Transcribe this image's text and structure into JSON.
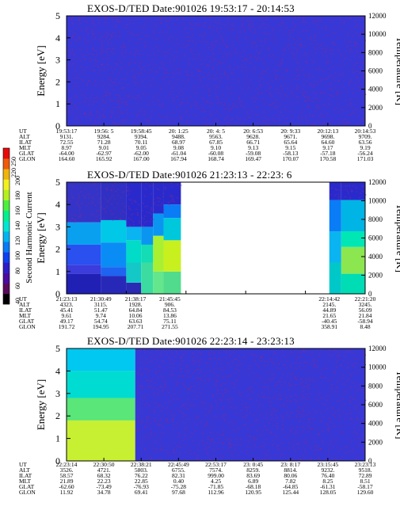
{
  "chart_data": [
    {
      "type": "heatmap",
      "title": "EXOS-D/TED Date:901026 19:53:17 - 20:14:53",
      "ylabel": "Energy [eV]",
      "ylabel_right": "Temperature [K]",
      "ylim": [
        0,
        5
      ],
      "yticks": [
        "0",
        "1",
        "2",
        "3",
        "4",
        "5"
      ],
      "y2lim": [
        0,
        12000
      ],
      "y2ticks": [
        "0",
        "2000",
        "4000",
        "6000",
        "8000",
        "10000",
        "12000"
      ],
      "orbit_rows": [
        "UT",
        "ALT",
        "ILAT",
        "MLT",
        "GLAT",
        "GLON"
      ],
      "orbit_columns": [
        [
          "19:53:17",
          "9131.",
          "72.55",
          "8.97",
          "-64.00",
          "164.60"
        ],
        [
          "19:56: 5",
          "9284.",
          "71.28",
          "9.01",
          "-62.97",
          "165.92"
        ],
        [
          "19:58:45",
          "9394.",
          "70.11",
          "9.05",
          "-62.00",
          "167.00"
        ],
        [
          "20: 1:25",
          "9488.",
          "68.97",
          "9.08",
          "-61.04",
          "167.94"
        ],
        [
          "20: 4: 5",
          "9563.",
          "67.85",
          "9.10",
          "-60.08",
          "168.74"
        ],
        [
          "20: 6:53",
          "9628.",
          "66.71",
          "9.13",
          "-59.08",
          "169.47"
        ],
        [
          "20: 9:33",
          "9671.",
          "65.64",
          "9.15",
          "-58.13",
          "170.07"
        ],
        [
          "20:12:13",
          "9698.",
          "64.60",
          "9.17",
          "-57.18",
          "170.58"
        ],
        [
          "20:14:53",
          "9709.",
          "63.56",
          "9.19",
          "-56.24",
          "171.03"
        ]
      ],
      "segments": [
        {
          "from": 0,
          "to": 1,
          "bands": [
            [
              0,
              5,
              "#3838d6"
            ]
          ]
        }
      ]
    },
    {
      "type": "heatmap",
      "title": "EXOS-D/TED Date:901026 21:23:13 - 22:23: 6",
      "ylabel": "Energy [eV]",
      "ylabel_right": "Temperature [K]",
      "ylim": [
        0,
        5
      ],
      "yticks": [
        "0",
        "1",
        "2",
        "3",
        "4",
        "5"
      ],
      "y2lim": [
        0,
        12000
      ],
      "y2ticks": [
        "0",
        "2000",
        "4000",
        "6000",
        "8000",
        "10000",
        "12000"
      ],
      "orbit_rows": [
        "UT",
        "ALT",
        "ILAT",
        "MLT",
        "GLAT",
        "GLON"
      ],
      "orbit_columns": [
        [
          "21:23:13",
          "4323.",
          "45.41",
          "9.61",
          "49.17",
          "191.72"
        ],
        [
          "21:30:49",
          "3115.",
          "51.47",
          "9.74",
          "54.74",
          "194.95"
        ],
        [
          "21:38:17",
          "1928.",
          "64.84",
          "10.06",
          "63.63",
          "207.71"
        ],
        [
          "21:45:45",
          "906.",
          "84.53",
          "13.86",
          "75.11",
          "271.55"
        ],
        [
          "22:14:42",
          "2145.",
          "44.89",
          "21.65",
          "-40.45",
          "358.91"
        ],
        [
          "22:21:20",
          "3245.",
          "56.09",
          "21.84",
          "-58.94",
          "8.48"
        ]
      ],
      "colorbar": {
        "label": "Second Harmonic Current",
        "min": 40,
        "max": 250,
        "ticks_lower": [
          "40",
          "60",
          "80",
          "100",
          "120",
          "140",
          "160",
          "180",
          "200"
        ],
        "ticks_upper": [
          "220",
          "250"
        ],
        "colors": [
          "#000000",
          "#5a0a5a",
          "#4b0aa0",
          "#2d1cc8",
          "#1040f0",
          "#0a7cf5",
          "#00b4f0",
          "#00e6d2",
          "#00f08c",
          "#4bf03c",
          "#b4f01e",
          "#f0f01e",
          "#f0b40a",
          "#f05a0a",
          "#e60a0a"
        ]
      },
      "segments": [
        {
          "from": 0.0,
          "to": 0.115,
          "bands": [
            [
              0,
              0.9,
              "#2020b4"
            ],
            [
              0.9,
              1.3,
              "#3c3cdc"
            ],
            [
              1.3,
              2.2,
              "#2a50f0"
            ],
            [
              2.2,
              3.2,
              "#0aa0f0"
            ],
            [
              3.2,
              5,
              "#3434c8"
            ]
          ]
        },
        {
          "from": 0.115,
          "to": 0.2,
          "bands": [
            [
              0,
              0.8,
              "#2828b8"
            ],
            [
              0.8,
              1.2,
              "#1e64f0"
            ],
            [
              1.2,
              2.3,
              "#0a8cf5"
            ],
            [
              2.3,
              3.3,
              "#00c8e6"
            ],
            [
              3.3,
              5,
              "#3030c4"
            ]
          ]
        },
        {
          "from": 0.2,
          "to": 0.25,
          "bands": [
            [
              0,
              0.5,
              "#2a2ab4"
            ],
            [
              0.5,
              1.4,
              "#14c8c8"
            ],
            [
              1.4,
              2.4,
              "#00dcc8"
            ],
            [
              2.4,
              3.0,
              "#0ab4f0"
            ],
            [
              3.0,
              5,
              "#2a2acc"
            ]
          ]
        },
        {
          "from": 0.25,
          "to": 0.29,
          "bands": [
            [
              0,
              1.4,
              "#3cdca0"
            ],
            [
              1.4,
              2.2,
              "#14dcb4"
            ],
            [
              2.2,
              3.0,
              "#0a96f0"
            ],
            [
              3.0,
              5,
              "#2a2acc"
            ]
          ]
        },
        {
          "from": 0.29,
          "to": 0.325,
          "bands": [
            [
              0,
              1.0,
              "#64e68c"
            ],
            [
              1.0,
              2.6,
              "#aaf032"
            ],
            [
              2.6,
              3.6,
              "#0a96f0"
            ],
            [
              3.6,
              5,
              "#2a2acc"
            ]
          ]
        },
        {
          "from": 0.325,
          "to": 0.383,
          "bands": [
            [
              0,
              1.0,
              "#50dc8c"
            ],
            [
              1.0,
              2.4,
              "#c8f01e"
            ],
            [
              2.4,
              3.4,
              "#00c8dc"
            ],
            [
              3.4,
              4.0,
              "#0a7cf5"
            ],
            [
              4.0,
              5,
              "#2a2acc"
            ]
          ]
        },
        {
          "from": 0.88,
          "to": 0.92,
          "bands": [
            [
              0,
              1.4,
              "#00c8c8"
            ],
            [
              1.4,
              2.8,
              "#0ab4f0"
            ],
            [
              2.8,
              4.2,
              "#0a7cf5"
            ],
            [
              4.2,
              5,
              "#2a2acc"
            ]
          ]
        },
        {
          "from": 0.92,
          "to": 1.0,
          "bands": [
            [
              0,
              0.9,
              "#00dcb4"
            ],
            [
              0.9,
              2.1,
              "#8ce650"
            ],
            [
              2.1,
              2.8,
              "#00e6b4"
            ],
            [
              2.8,
              4.2,
              "#00b4e6"
            ],
            [
              4.2,
              5,
              "#2a2acc"
            ]
          ]
        }
      ]
    },
    {
      "type": "heatmap",
      "title": "EXOS-D/TED Date:901026 22:23:14 - 23:23:13",
      "ylabel": "Energy [eV]",
      "ylabel_right": "Temperature [K]",
      "ylim": [
        0,
        5
      ],
      "yticks": [
        "0",
        "1",
        "2",
        "3",
        "4",
        "5"
      ],
      "y2lim": [
        0,
        12000
      ],
      "y2ticks": [
        "0",
        "2000",
        "4000",
        "6000",
        "8000",
        "10000",
        "12000"
      ],
      "orbit_rows": [
        "UT",
        "ALT",
        "ILAT",
        "MLT",
        "GLAT",
        "GLON"
      ],
      "orbit_columns": [
        [
          "22:23:14",
          "3526.",
          "58.57",
          "21.89",
          "-62.60",
          "11.92"
        ],
        [
          "22:30:50",
          "4721.",
          "68.32",
          "22.23",
          "-73.49",
          "34.78"
        ],
        [
          "22:38:21",
          "5803.",
          "76.22",
          "22.85",
          "-76.93",
          "69.41"
        ],
        [
          "22:45:49",
          "6755.",
          "82.31",
          "0.40",
          "-75.28",
          "97.68"
        ],
        [
          "22:53:17",
          "7574.",
          "999.00",
          "4.25",
          "-71.85",
          "112.96"
        ],
        [
          "23: 0:45",
          "8259.",
          "83.69",
          "6.89",
          "-68.18",
          "120.95"
        ],
        [
          "23: 8:17",
          "8814.",
          "80.06",
          "7.82",
          "-64.85",
          "125.44"
        ],
        [
          "23:15:45",
          "9232.",
          "76.40",
          "8.25",
          "-61.31",
          "128.05"
        ],
        [
          "23:23:13",
          "9518.",
          "72.89",
          "8.51",
          "-58.17",
          "129.60"
        ]
      ],
      "segments": [
        {
          "from": 0.0,
          "to": 0.23,
          "bands": [
            [
              0,
              1.8,
              "#c8f032"
            ],
            [
              1.8,
              2.8,
              "#5ae678"
            ],
            [
              2.8,
              4.0,
              "#00dcd2"
            ],
            [
              4.0,
              5,
              "#00c8f0"
            ]
          ]
        },
        {
          "from": 0.23,
          "to": 1.0,
          "bands": [
            [
              0,
              5,
              "#3838d6"
            ]
          ]
        }
      ]
    }
  ]
}
